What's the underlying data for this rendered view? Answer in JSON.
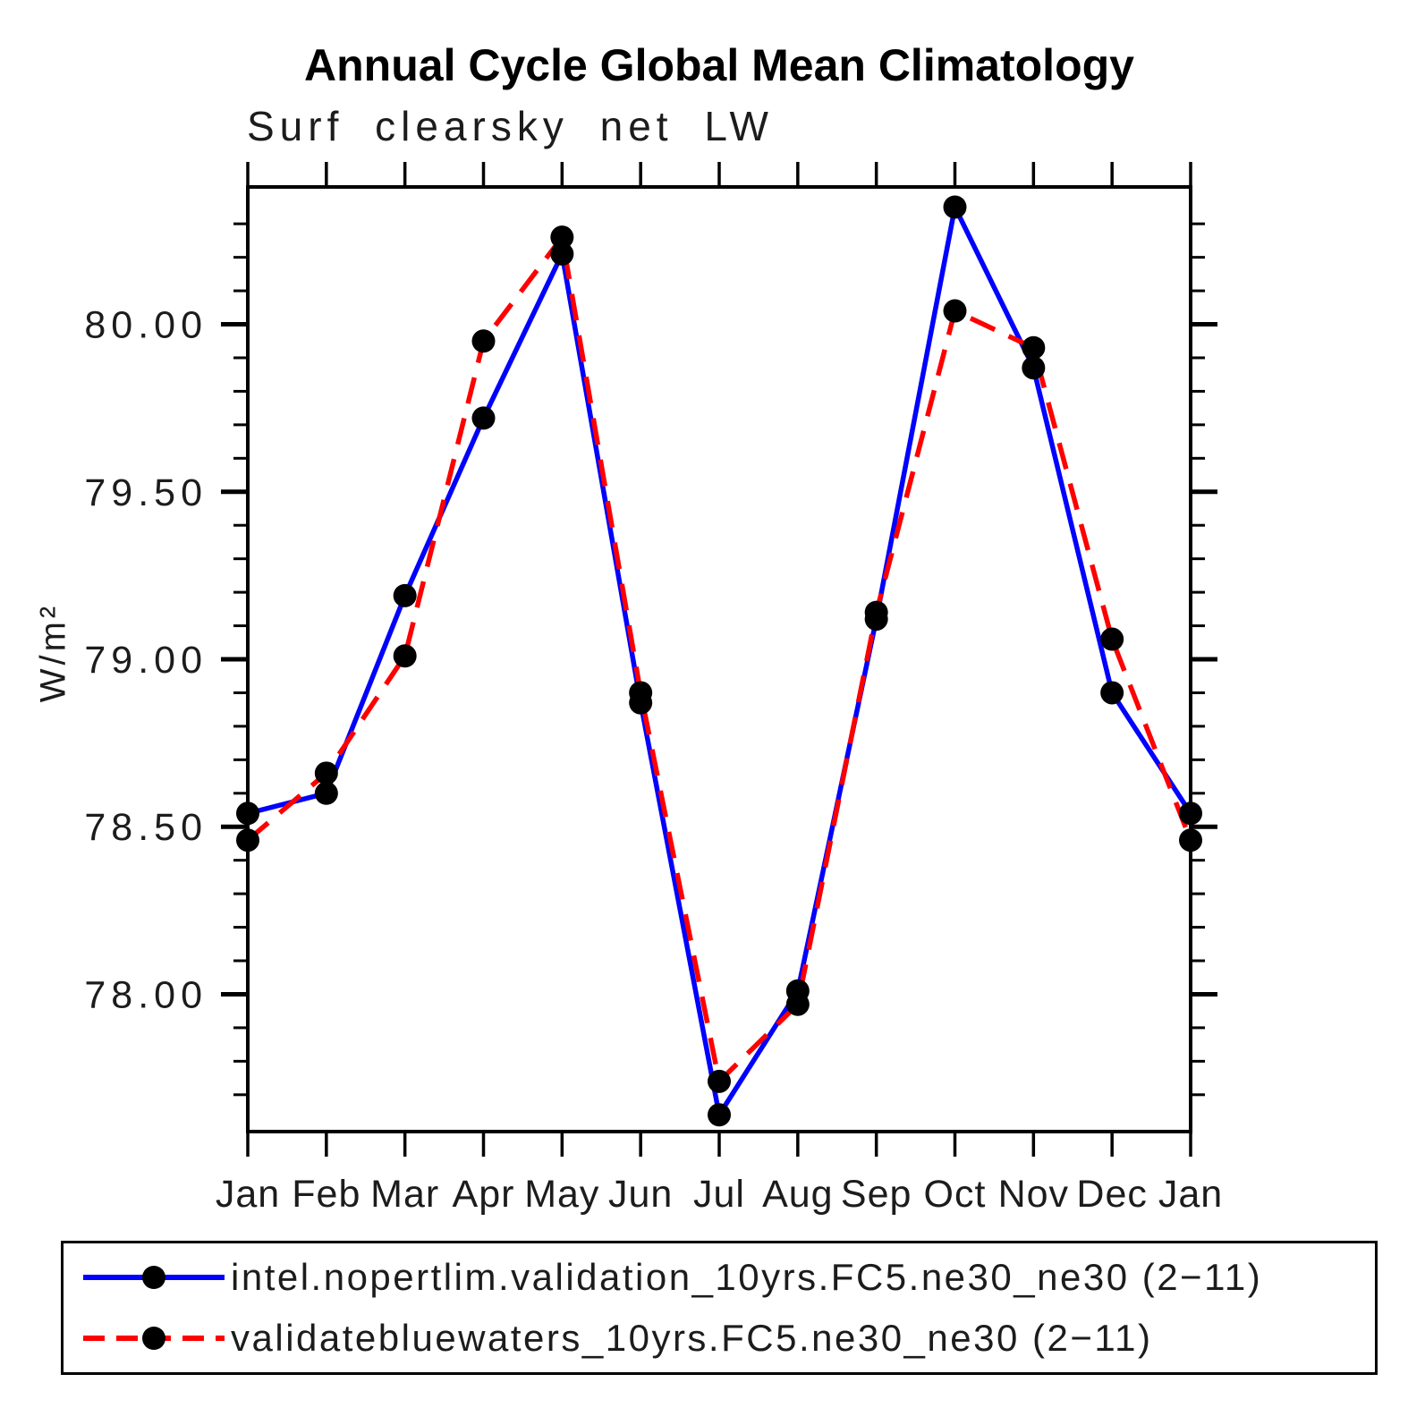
{
  "chart_data": {
    "type": "line",
    "title": "Annual Cycle Global Mean Climatology",
    "subtitle": "Surf clearsky net LW",
    "ylabel": "W/m²",
    "xlabel": "",
    "categories": [
      "Jan",
      "Feb",
      "Mar",
      "Apr",
      "May",
      "Jun",
      "Jul",
      "Aug",
      "Sep",
      "Oct",
      "Nov",
      "Dec",
      "Jan"
    ],
    "ylim": [
      77.59,
      80.41
    ],
    "ytick_major": [
      78.0,
      78.5,
      79.0,
      79.5,
      80.0
    ],
    "ytick_major_labels": [
      "78.00",
      "78.50",
      "79.00",
      "79.50",
      "80.00"
    ],
    "ytick_minor_step": 0.1,
    "grid": false,
    "legend_position": "bottom",
    "series": [
      {
        "name": "intel.nopertlim.validation_10yrs.FC5.ne30_ne30 (2−11)",
        "color": "#0000ff",
        "line_style": "solid",
        "marker": "circle",
        "marker_color": "#000000",
        "values": [
          78.54,
          78.6,
          79.19,
          79.72,
          80.21,
          78.87,
          77.64,
          78.01,
          79.12,
          80.35,
          79.87,
          78.9,
          78.54
        ]
      },
      {
        "name": "validatebluewaters_10yrs.FC5.ne30_ne30 (2−11)",
        "color": "#ff0000",
        "line_style": "dashed",
        "marker": "circle",
        "marker_color": "#000000",
        "values": [
          78.46,
          78.66,
          79.01,
          79.95,
          80.26,
          78.9,
          77.74,
          77.97,
          79.14,
          80.04,
          79.93,
          79.06,
          78.46
        ]
      }
    ],
    "axis_color": "#000000"
  }
}
